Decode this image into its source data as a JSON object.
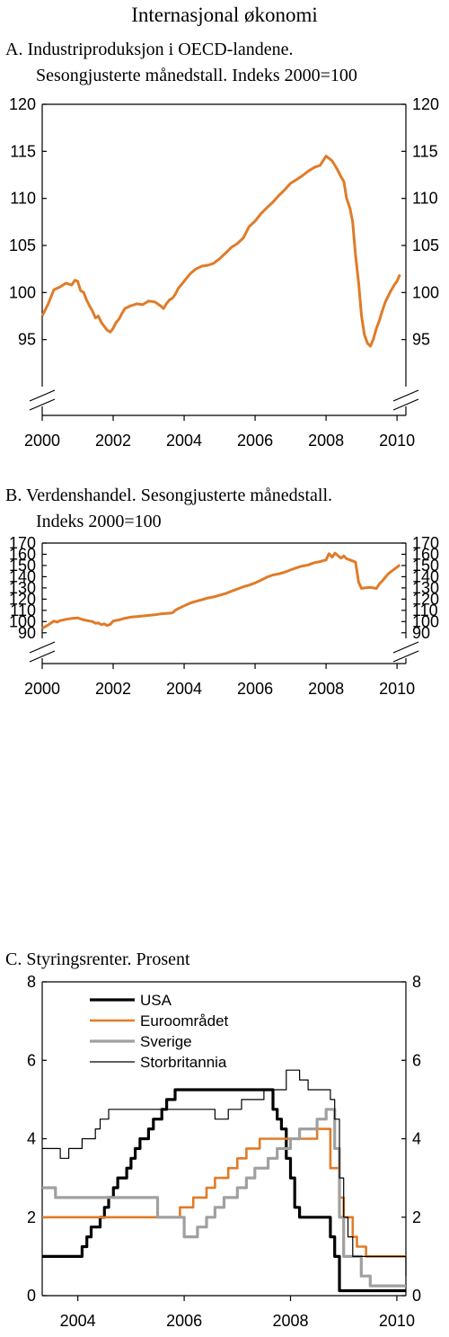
{
  "page_title": "Internasjonal økonomi",
  "chart_data": [
    {
      "id": "A",
      "type": "line",
      "title_line1": "A.  Industriproduksjon i OECD-landene.",
      "title_line2": "Sesongjusterte månedstall. Indeks 2000=100",
      "ylim": [
        90,
        120
      ],
      "yticks": [
        95,
        100,
        105,
        110,
        115,
        120
      ],
      "xlim": [
        2000,
        2010.25
      ],
      "xticks": [
        2000,
        2002,
        2004,
        2006,
        2008,
        2010
      ],
      "axis_break": true,
      "series": [
        {
          "color": "#E07B28",
          "x": [
            2000.0,
            2000.17,
            2000.33,
            2000.5,
            2000.67,
            2000.83,
            2000.92,
            2001.0,
            2001.08,
            2001.17,
            2001.25,
            2001.33,
            2001.42,
            2001.5,
            2001.58,
            2001.67,
            2001.75,
            2001.83,
            2001.92,
            2002.0,
            2002.08,
            2002.17,
            2002.25,
            2002.33,
            2002.5,
            2002.67,
            2002.83,
            2003.0,
            2003.17,
            2003.33,
            2003.42,
            2003.5,
            2003.58,
            2003.67,
            2003.75,
            2003.83,
            2004.0,
            2004.17,
            2004.33,
            2004.5,
            2004.67,
            2004.83,
            2005.0,
            2005.17,
            2005.33,
            2005.5,
            2005.67,
            2005.83,
            2006.0,
            2006.17,
            2006.33,
            2006.5,
            2006.67,
            2006.83,
            2007.0,
            2007.17,
            2007.33,
            2007.5,
            2007.67,
            2007.83,
            2008.0,
            2008.17,
            2008.25,
            2008.33,
            2008.42,
            2008.5,
            2008.58,
            2008.67,
            2008.75,
            2008.83,
            2008.92,
            2009.0,
            2009.08,
            2009.17,
            2009.25,
            2009.33,
            2009.42,
            2009.5,
            2009.58,
            2009.67,
            2009.75,
            2009.83,
            2009.92,
            2010.0,
            2010.08
          ],
          "y": [
            97.5,
            98.8,
            100.3,
            100.6,
            101.0,
            100.8,
            101.3,
            101.2,
            100.2,
            100.0,
            99.2,
            98.6,
            98.0,
            97.3,
            97.5,
            96.8,
            96.4,
            96.0,
            95.8,
            96.2,
            96.8,
            97.2,
            97.8,
            98.3,
            98.6,
            98.8,
            98.7,
            99.1,
            99.0,
            98.6,
            98.3,
            98.8,
            99.2,
            99.4,
            99.8,
            100.4,
            101.2,
            102.0,
            102.5,
            102.8,
            102.9,
            103.1,
            103.6,
            104.2,
            104.8,
            105.2,
            105.8,
            107.0,
            107.6,
            108.4,
            109.0,
            109.6,
            110.3,
            110.9,
            111.6,
            112.0,
            112.4,
            112.9,
            113.3,
            113.5,
            114.5,
            114.0,
            113.5,
            113.0,
            112.3,
            111.8,
            110.0,
            109.0,
            107.5,
            104.0,
            101.0,
            97.5,
            95.5,
            94.6,
            94.3,
            95.0,
            96.2,
            97.0,
            98.0,
            99.0,
            99.6,
            100.2,
            100.8,
            101.2,
            101.9
          ]
        }
      ]
    },
    {
      "id": "B",
      "type": "line",
      "title_line1": "B.  Verdenshandel. Sesongjusterte månedstall.",
      "title_line2": "Indeks 2000=100",
      "ylim": [
        85,
        170
      ],
      "yticks": [
        90,
        100,
        110,
        120,
        130,
        140,
        150,
        160,
        170
      ],
      "xlim": [
        2000,
        2010.25
      ],
      "xticks": [
        2000,
        2002,
        2004,
        2006,
        2008,
        2010
      ],
      "axis_break": true,
      "series": [
        {
          "color": "#E07B28",
          "x": [
            2000.0,
            2000.17,
            2000.33,
            2000.42,
            2000.5,
            2000.67,
            2000.83,
            2001.0,
            2001.17,
            2001.33,
            2001.42,
            2001.5,
            2001.58,
            2001.67,
            2001.75,
            2001.83,
            2001.92,
            2002.0,
            2002.17,
            2002.33,
            2002.5,
            2002.67,
            2002.83,
            2003.0,
            2003.17,
            2003.33,
            2003.5,
            2003.67,
            2003.75,
            2003.83,
            2004.0,
            2004.17,
            2004.33,
            2004.5,
            2004.67,
            2004.83,
            2005.0,
            2005.17,
            2005.33,
            2005.5,
            2005.67,
            2005.83,
            2006.0,
            2006.17,
            2006.33,
            2006.5,
            2006.67,
            2006.83,
            2007.0,
            2007.17,
            2007.33,
            2007.5,
            2007.67,
            2007.83,
            2008.0,
            2008.08,
            2008.17,
            2008.25,
            2008.33,
            2008.42,
            2008.5,
            2008.58,
            2008.67,
            2008.83,
            2008.92,
            2009.0,
            2009.08,
            2009.25,
            2009.42,
            2009.5,
            2009.58,
            2009.67,
            2009.75,
            2009.83,
            2010.0,
            2010.08
          ],
          "y": [
            94.0,
            97.0,
            100.5,
            99.5,
            100.8,
            102.0,
            102.8,
            103.2,
            101.5,
            100.5,
            100.0,
            98.5,
            98.8,
            97.2,
            98.0,
            96.5,
            97.5,
            100.5,
            101.5,
            103.0,
            104.0,
            104.5,
            105.0,
            105.5,
            106.0,
            106.8,
            107.2,
            107.8,
            110.0,
            111.5,
            114.0,
            116.5,
            118.0,
            119.5,
            121.0,
            122.0,
            123.5,
            125.0,
            127.0,
            129.0,
            131.0,
            132.5,
            134.5,
            137.0,
            139.5,
            141.5,
            142.5,
            144.0,
            146.0,
            148.0,
            149.5,
            150.5,
            152.5,
            153.5,
            155.0,
            160.5,
            157.5,
            161.0,
            159.0,
            156.5,
            158.5,
            156.0,
            155.0,
            153.0,
            135.0,
            129.5,
            130.0,
            130.5,
            129.5,
            133.5,
            136.0,
            139.5,
            142.5,
            144.5,
            148.5,
            150.5
          ]
        }
      ]
    },
    {
      "id": "C",
      "type": "line",
      "title_line1": "C.  Styringsrenter. Prosent",
      "ylim": [
        0,
        8
      ],
      "yticks": [
        0,
        2,
        4,
        6,
        8
      ],
      "xlim": [
        2003.33,
        2010.17
      ],
      "xticks": [
        2004,
        2006,
        2008,
        2010
      ],
      "legend_position": "top-left",
      "series": [
        {
          "name": "USA",
          "color": "#000000",
          "width": 3.2,
          "step": true,
          "x": [
            2003.33,
            2003.5,
            2003.58,
            2003.67,
            2003.75,
            2003.83,
            2003.92,
            2004.0,
            2004.08,
            2004.17,
            2004.25,
            2004.33,
            2004.42,
            2004.5,
            2004.58,
            2004.67,
            2004.75,
            2004.83,
            2004.92,
            2005.0,
            2005.08,
            2005.17,
            2005.25,
            2005.33,
            2005.42,
            2005.5,
            2005.58,
            2005.67,
            2005.75,
            2005.83,
            2005.92,
            2006.0,
            2006.08,
            2006.5,
            2007.0,
            2007.5,
            2007.67,
            2007.75,
            2007.83,
            2007.92,
            2008.0,
            2008.08,
            2008.17,
            2008.25,
            2008.75,
            2008.83,
            2008.92,
            2010.17
          ],
          "y": [
            1.0,
            1.0,
            1.0,
            1.0,
            1.0,
            1.0,
            1.0,
            1.0,
            1.25,
            1.5,
            1.75,
            1.75,
            2.0,
            2.25,
            2.5,
            2.75,
            3.0,
            3.0,
            3.25,
            3.5,
            3.75,
            4.0,
            4.0,
            4.25,
            4.5,
            4.5,
            4.75,
            5.0,
            5.0,
            5.25,
            5.25,
            5.25,
            5.25,
            5.25,
            5.25,
            5.25,
            4.75,
            4.5,
            4.25,
            3.5,
            3.0,
            2.25,
            2.0,
            2.0,
            1.5,
            1.0,
            0.125,
            0.125
          ]
        },
        {
          "name": "Euroområdet",
          "color": "#E07B28",
          "width": 2.6,
          "step": true,
          "x": [
            2003.33,
            2003.5,
            2005.92,
            2006.17,
            2006.42,
            2006.58,
            2006.83,
            2007.0,
            2007.17,
            2007.42,
            2008.5,
            2008.75,
            2008.92,
            2009.0,
            2009.17,
            2009.25,
            2009.42,
            2010.17
          ],
          "y": [
            2.0,
            2.0,
            2.25,
            2.5,
            2.75,
            3.0,
            3.25,
            3.5,
            3.75,
            4.0,
            4.25,
            3.25,
            2.5,
            2.0,
            1.5,
            1.25,
            1.0,
            1.0
          ]
        },
        {
          "name": "Sverige",
          "color": "#A0A0A0",
          "width": 3.2,
          "step": true,
          "x": [
            2003.33,
            2003.5,
            2003.58,
            2005.5,
            2006.0,
            2006.25,
            2006.42,
            2006.58,
            2006.75,
            2007.0,
            2007.17,
            2007.33,
            2007.58,
            2007.75,
            2008.0,
            2008.17,
            2008.5,
            2008.67,
            2008.83,
            2008.92,
            2009.0,
            2009.17,
            2009.33,
            2009.5,
            2010.17
          ],
          "y": [
            2.75,
            2.75,
            2.5,
            2.0,
            1.5,
            1.75,
            2.0,
            2.25,
            2.5,
            2.75,
            3.0,
            3.25,
            3.5,
            3.75,
            4.0,
            4.25,
            4.5,
            4.75,
            3.75,
            2.0,
            1.0,
            1.0,
            0.5,
            0.25,
            0.25
          ]
        },
        {
          "name": "Storbritannia",
          "color": "#000000",
          "width": 1.2,
          "step": true,
          "x": [
            2003.33,
            2003.5,
            2003.67,
            2003.83,
            2004.08,
            2004.33,
            2004.42,
            2004.58,
            2005.58,
            2006.58,
            2006.83,
            2007.08,
            2007.5,
            2007.92,
            2008.17,
            2008.33,
            2008.75,
            2008.83,
            2008.92,
            2009.0,
            2009.08,
            2009.17,
            2010.17
          ],
          "y": [
            3.75,
            3.75,
            3.5,
            3.75,
            4.0,
            4.25,
            4.5,
            4.75,
            4.75,
            4.5,
            4.75,
            5.0,
            5.25,
            5.75,
            5.5,
            5.25,
            5.0,
            4.5,
            3.0,
            2.0,
            1.5,
            1.0,
            0.5
          ]
        }
      ]
    }
  ]
}
